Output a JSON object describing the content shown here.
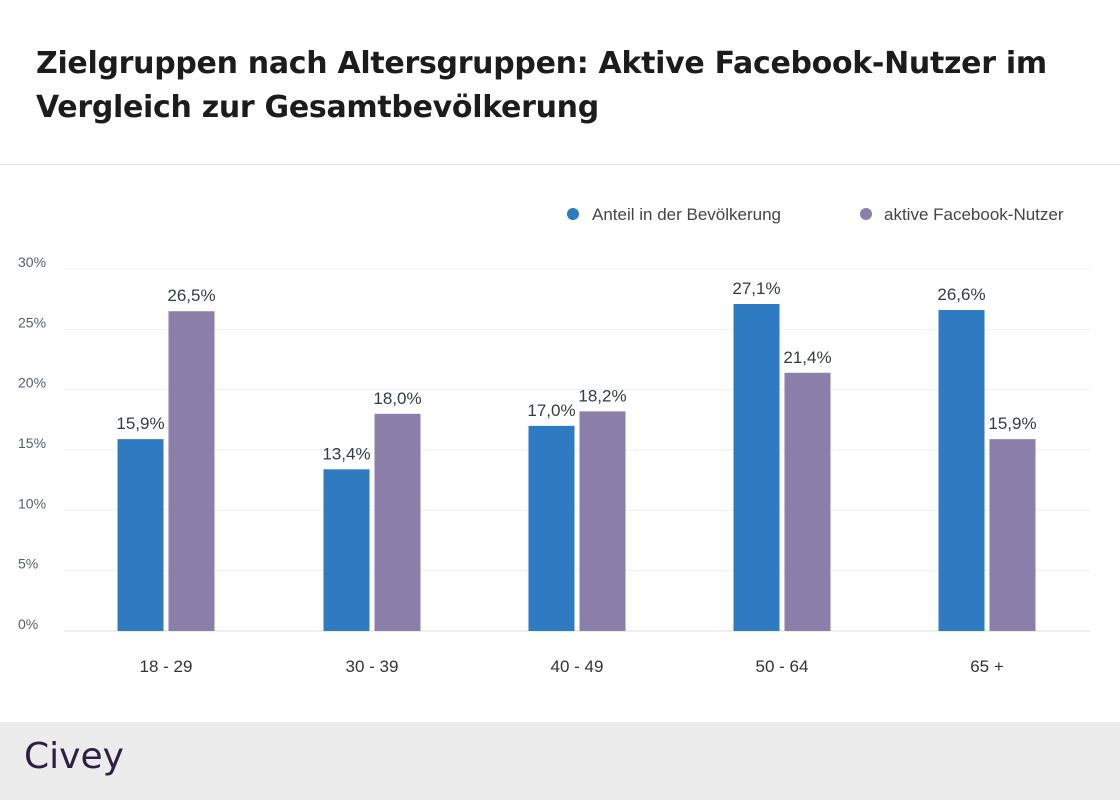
{
  "title": "Zielgruppen nach Altersgruppen: Aktive Facebook-Nutzer im Vergleich zur Gesamtbevölkerung",
  "footer": {
    "logo": "Civey"
  },
  "chart_data": {
    "type": "bar",
    "categories": [
      "18 - 29",
      "30 - 39",
      "40 - 49",
      "50 - 64",
      "65 +"
    ],
    "series": [
      {
        "name": "Anteil in der Bevölkerung",
        "color": "#2e7bc2",
        "values": [
          15.9,
          13.4,
          17.0,
          27.1,
          26.6
        ],
        "labels": [
          "15,9%",
          "13,4%",
          "17,0%",
          "27,1%",
          "26,6%"
        ]
      },
      {
        "name": "aktive Facebook-Nutzer",
        "color": "#8b7faa",
        "values": [
          26.5,
          18.0,
          18.2,
          21.4,
          15.9
        ],
        "labels": [
          "26,5%",
          "18,0%",
          "18,2%",
          "21,4%",
          "15,9%"
        ]
      }
    ],
    "yticks": [
      "0%",
      "5%",
      "10%",
      "15%",
      "20%",
      "25%",
      "30%"
    ],
    "ylim": [
      0,
      30
    ],
    "grid": true,
    "legend": "top-right"
  }
}
